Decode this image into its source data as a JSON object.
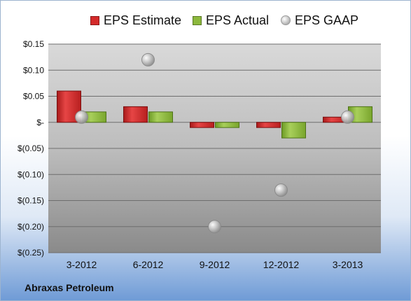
{
  "company": "Abraxas Petroleum",
  "colors": {
    "estimate": "#d42a2a",
    "actual": "#8cb83c",
    "gaap": "#b5b5b5"
  },
  "chart_data": {
    "type": "bar",
    "title": "",
    "xlabel": "",
    "ylabel": "",
    "categories": [
      "3-2012",
      "6-2012",
      "9-2012",
      "12-2012",
      "3-2013"
    ],
    "series": [
      {
        "name": "EPS Estimate",
        "kind": "bar",
        "values": [
          0.06,
          0.03,
          -0.01,
          -0.01,
          0.01
        ]
      },
      {
        "name": "EPS Actual",
        "kind": "bar",
        "values": [
          0.02,
          0.02,
          -0.01,
          -0.03,
          0.03
        ]
      },
      {
        "name": "EPS GAAP",
        "kind": "point",
        "values": [
          0.01,
          0.12,
          -0.2,
          -0.13,
          0.01
        ]
      }
    ],
    "ylim": [
      -0.25,
      0.15
    ],
    "yticks": [
      0.15,
      0.1,
      0.05,
      0,
      -0.05,
      -0.1,
      -0.15,
      -0.2,
      -0.25
    ],
    "ytick_labels": [
      "$0.15",
      "$0.10",
      "$0.05",
      "$-",
      "$(0.05)",
      "$(0.10)",
      "$(0.15)",
      "$(0.20)",
      "$(0.25)"
    ],
    "grid": true,
    "legend_position": "top"
  }
}
